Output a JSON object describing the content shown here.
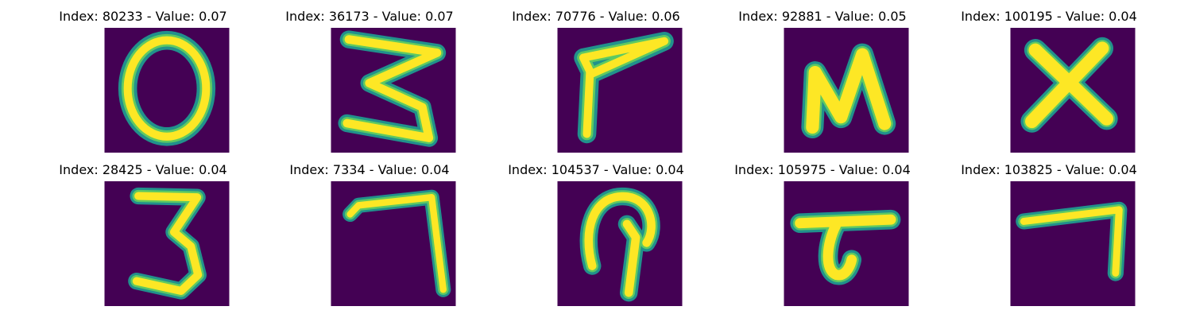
{
  "colors": {
    "background": "#440154",
    "glow": "#21918c",
    "mid": "#5ec962",
    "stroke": "#fde725"
  },
  "grid": [
    {
      "title": "Index: 80233 - Value: 0.07",
      "glyph": "zero-glyph"
    },
    {
      "title": "Index: 36173 - Value: 0.07",
      "glyph": "three-glyph"
    },
    {
      "title": "Index: 70776 - Value: 0.06",
      "glyph": "seven-glyph"
    },
    {
      "title": "Index: 92881 - Value: 0.05",
      "glyph": "n-glyph"
    },
    {
      "title": "Index: 100195 - Value: 0.04",
      "glyph": "x-glyph"
    },
    {
      "title": "Index: 28425 - Value: 0.04",
      "glyph": "three-glyph"
    },
    {
      "title": "Index: 7334 - Value: 0.04",
      "glyph": "seven-glyph"
    },
    {
      "title": "Index: 104537 - Value: 0.04",
      "glyph": "p-glyph"
    },
    {
      "title": "Index: 105975 - Value: 0.04",
      "glyph": "t-glyph"
    },
    {
      "title": "Index: 103825 - Value: 0.04",
      "glyph": "seven-glyph"
    }
  ]
}
